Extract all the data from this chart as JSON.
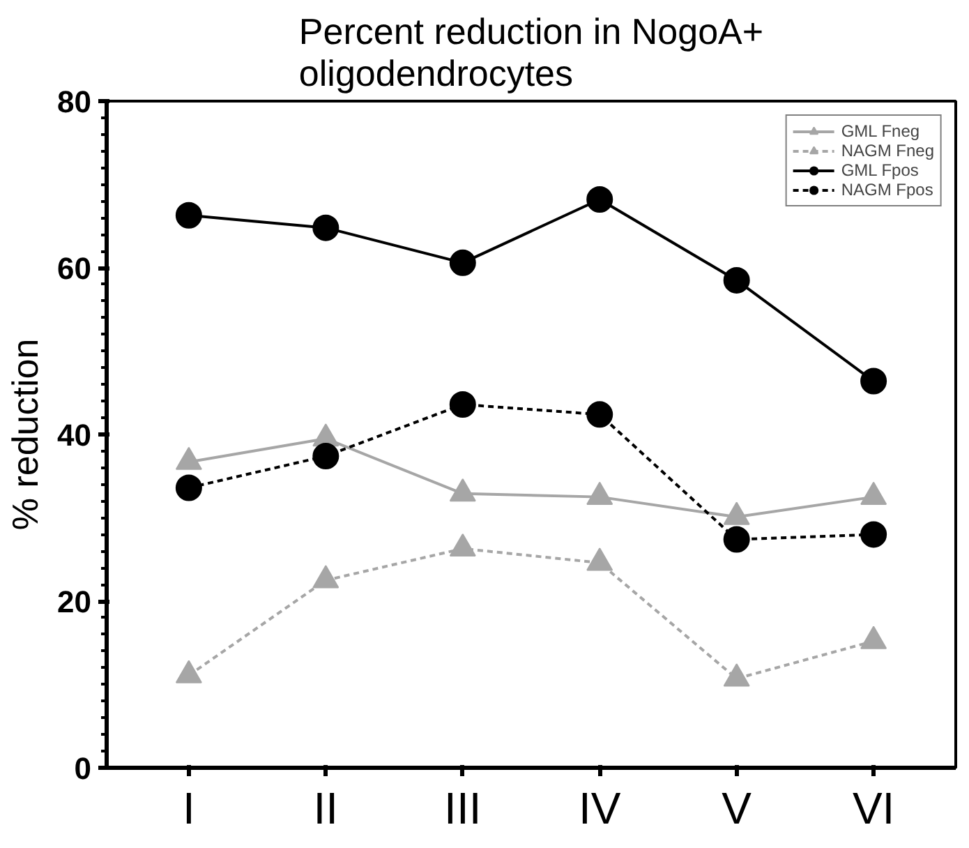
{
  "chart_data": {
    "type": "line",
    "title": "Percent reduction in NogoA+\noligodendrocytes",
    "ylabel": "% reduction",
    "categories": [
      "I",
      "II",
      "III",
      "IV",
      "V",
      "VI"
    ],
    "ylim": [
      0,
      80
    ],
    "yticks": [
      0,
      20,
      40,
      60,
      80
    ],
    "grid": false,
    "legend": "top right",
    "series": [
      {
        "name": "GML Fneg",
        "color": "#a6a6a6",
        "marker": "triangle",
        "line_style": "solid",
        "values": [
          36.7,
          39.5,
          32.9,
          32.5,
          30.1,
          32.5
        ]
      },
      {
        "name": "NAGM Fneg",
        "color": "#a6a6a6",
        "marker": "triangle",
        "line_style": "dashed",
        "values": [
          11.1,
          22.5,
          26.3,
          24.6,
          10.7,
          15.2
        ]
      },
      {
        "name": "GML Fpos",
        "color": "#000000",
        "marker": "circle",
        "line_style": "solid",
        "values": [
          66.3,
          64.8,
          60.6,
          68.2,
          58.5,
          46.4
        ]
      },
      {
        "name": "NAGM Fpos",
        "color": "#000000",
        "marker": "circle",
        "line_style": "dashed",
        "values": [
          33.6,
          37.4,
          43.6,
          42.4,
          27.4,
          28.0
        ]
      }
    ]
  }
}
